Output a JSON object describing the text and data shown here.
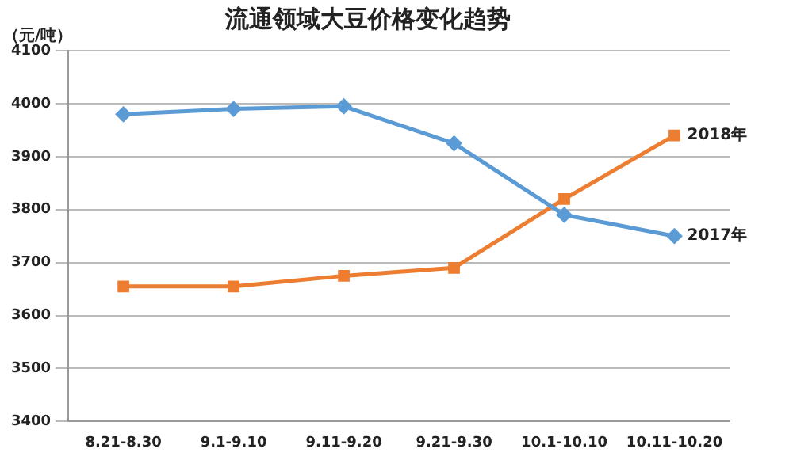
{
  "chart_data": {
    "type": "line",
    "title": "流通领域大豆价格变化趋势",
    "ylabel": "（元/吨）",
    "categories": [
      "8.21-8.30",
      "9.1-9.10",
      "9.11-9.20",
      "9.21-9.30",
      "10.1-10.10",
      "10.11-10.20"
    ],
    "series": [
      {
        "name": "2017年",
        "color": "#5b9bd5",
        "marker": "diamond",
        "values": [
          3980,
          3990,
          3995,
          3925,
          3790,
          3750
        ]
      },
      {
        "name": "2018年",
        "color": "#ed7d31",
        "marker": "square",
        "values": [
          3655,
          3655,
          3675,
          3690,
          3820,
          3940
        ]
      }
    ],
    "ylim": [
      3400,
      4100
    ],
    "yticks": [
      3400,
      3500,
      3600,
      3700,
      3800,
      3900,
      4000,
      4100
    ],
    "grid": "y",
    "legend": false
  }
}
